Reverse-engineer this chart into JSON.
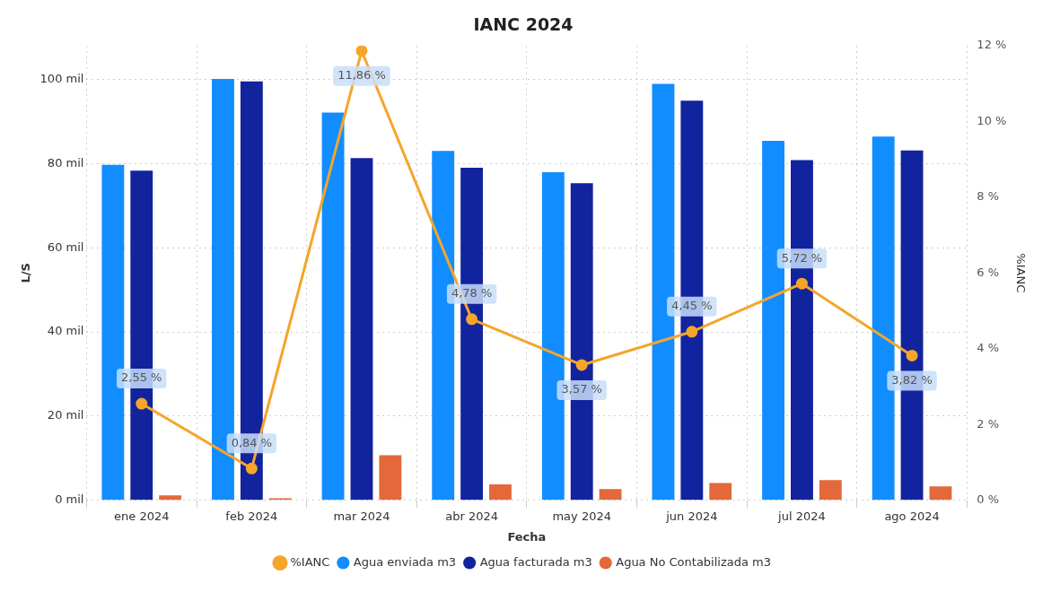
{
  "chart_data": {
    "type": "bar",
    "title": "IANC 2024",
    "xlabel": "Fecha",
    "ylabel": "L/S",
    "y2label": "%IANC",
    "categories": [
      "ene 2024",
      "feb 2024",
      "mar 2024",
      "abr 2024",
      "may 2024",
      "jun 2024",
      "jul 2024",
      "ago 2024"
    ],
    "series": [
      {
        "name": "Agua enviada m3",
        "color": "#118dff",
        "values": [
          79.7,
          100.1,
          92.1,
          83.0,
          77.9,
          98.9,
          85.4,
          86.4
        ]
      },
      {
        "name": "Agua facturada m3",
        "color": "#12239e",
        "values": [
          78.3,
          99.5,
          81.3,
          79.0,
          75.3,
          94.9,
          80.8,
          83.1
        ]
      },
      {
        "name": "Agua No Contabilizada m3",
        "color": "#e3693a",
        "values": [
          1.2,
          0.5,
          10.7,
          3.8,
          2.7,
          4.1,
          4.8,
          3.3
        ]
      },
      {
        "name": "%IANC",
        "type": "line",
        "axis": "y2",
        "color": "#f5a52a",
        "marker": "circle",
        "values": [
          2.55,
          0.84,
          11.86,
          4.78,
          3.57,
          4.45,
          5.72,
          3.82
        ],
        "value_labels": [
          "2,55 %",
          "0,84 %",
          "11,86 %",
          "4,78 %",
          "3,57 %",
          "4,45 %",
          "5,72 %",
          "3,82 %"
        ]
      }
    ],
    "ylim": [
      0,
      108
    ],
    "yticks": [
      {
        "value": 0,
        "label": "0 mil"
      },
      {
        "value": 20,
        "label": "20 mil"
      },
      {
        "value": 40,
        "label": "40 mil"
      },
      {
        "value": 60,
        "label": "60 mil"
      },
      {
        "value": 80,
        "label": "80 mil"
      },
      {
        "value": 100,
        "label": "100 mil"
      }
    ],
    "y2lim": [
      0,
      12
    ],
    "y2ticks": [
      {
        "value": 0,
        "label": "0 %"
      },
      {
        "value": 2,
        "label": "2 %"
      },
      {
        "value": 4,
        "label": "4 %"
      },
      {
        "value": 6,
        "label": "6 %"
      },
      {
        "value": 8,
        "label": "8 %"
      },
      {
        "value": 10,
        "label": "10 %"
      },
      {
        "value": 12,
        "label": "12 %"
      }
    ],
    "grid": true,
    "legend": "bottom"
  }
}
